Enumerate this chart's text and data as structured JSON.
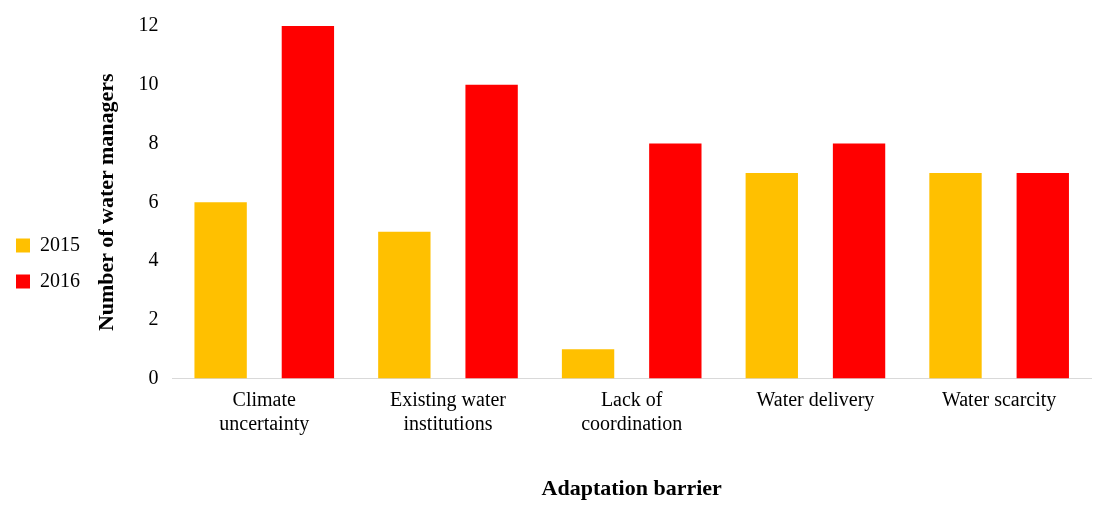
{
  "chart_data": {
    "type": "bar",
    "categories": [
      "Climate uncertainty",
      "Existing water institutions",
      "Lack of coordination",
      "Water delivery",
      "Water scarcity"
    ],
    "series": [
      {
        "name": "2015",
        "color": "#ffc000",
        "values": [
          6,
          5,
          1,
          7,
          7
        ]
      },
      {
        "name": "2016",
        "color": "#ff0000",
        "values": [
          12,
          10,
          8,
          8,
          7
        ]
      }
    ],
    "xlabel": "Adaptation barrier",
    "ylabel": "Number of water managers",
    "ylim": [
      0,
      12
    ],
    "yticks": [
      0,
      2,
      4,
      6,
      8,
      10,
      12
    ],
    "grid": false,
    "legend": "left"
  }
}
